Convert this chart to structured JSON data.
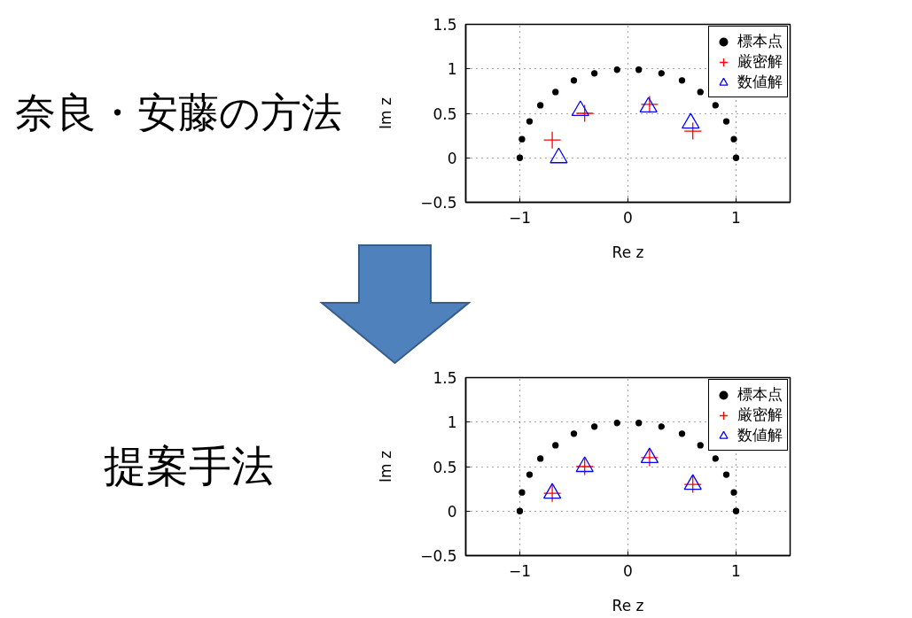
{
  "chart_data": [
    {
      "type": "scatter",
      "title": "奈良・安藤の方法",
      "xlabel": "Re z",
      "ylabel": "Im z",
      "xlim": [
        -1.5,
        1.5
      ],
      "ylim": [
        -0.5,
        1.5
      ],
      "xticks": [
        -1,
        0,
        1
      ],
      "yticks": [
        -0.5,
        0,
        0.5,
        1,
        1.5
      ],
      "grid": true,
      "legend": "top right",
      "series": [
        {
          "name": "標本点",
          "color": "#000000",
          "marker": "circle",
          "x": [
            -1.0,
            -0.98,
            -0.91,
            -0.81,
            -0.67,
            -0.5,
            -0.31,
            -0.1,
            0.1,
            0.31,
            0.5,
            0.67,
            0.81,
            0.91,
            0.98,
            1.0
          ],
          "values": [
            0,
            0.21,
            0.41,
            0.59,
            0.74,
            0.87,
            0.95,
            0.99,
            0.99,
            0.95,
            0.87,
            0.74,
            0.59,
            0.41,
            0.21,
            0
          ]
        },
        {
          "name": "厳密解",
          "color": "#ff0000",
          "marker": "cross",
          "x": [
            -0.7,
            -0.4,
            0.2,
            0.6
          ],
          "values": [
            0.2,
            0.5,
            0.6,
            0.3
          ]
        },
        {
          "name": "数値解",
          "color": "#0000ff",
          "marker": "triangle",
          "x": [
            -0.64,
            -0.44,
            0.19,
            0.58
          ],
          "values": [
            0.0,
            0.53,
            0.57,
            0.39
          ]
        }
      ]
    },
    {
      "type": "scatter",
      "title": "提案手法",
      "xlabel": "Re z",
      "ylabel": "Im z",
      "xlim": [
        -1.5,
        1.5
      ],
      "ylim": [
        -0.5,
        1.5
      ],
      "xticks": [
        -1,
        0,
        1
      ],
      "yticks": [
        -0.5,
        0,
        0.5,
        1,
        1.5
      ],
      "grid": true,
      "legend": "top right",
      "series": [
        {
          "name": "標本点",
          "color": "#000000",
          "marker": "circle",
          "x": [
            -1.0,
            -0.98,
            -0.91,
            -0.81,
            -0.67,
            -0.5,
            -0.31,
            -0.1,
            0.1,
            0.31,
            0.5,
            0.67,
            0.81,
            0.91,
            0.98,
            1.0
          ],
          "values": [
            0,
            0.21,
            0.41,
            0.59,
            0.74,
            0.87,
            0.95,
            0.99,
            0.99,
            0.95,
            0.87,
            0.74,
            0.59,
            0.41,
            0.21,
            0
          ]
        },
        {
          "name": "厳密解",
          "color": "#ff0000",
          "marker": "cross",
          "x": [
            -0.7,
            -0.4,
            0.2,
            0.6
          ],
          "values": [
            0.2,
            0.5,
            0.6,
            0.3
          ]
        },
        {
          "name": "数値解",
          "color": "#0000ff",
          "marker": "triangle",
          "x": [
            -0.7,
            -0.4,
            0.2,
            0.6
          ],
          "values": [
            0.2,
            0.5,
            0.6,
            0.3
          ]
        }
      ]
    }
  ]
}
